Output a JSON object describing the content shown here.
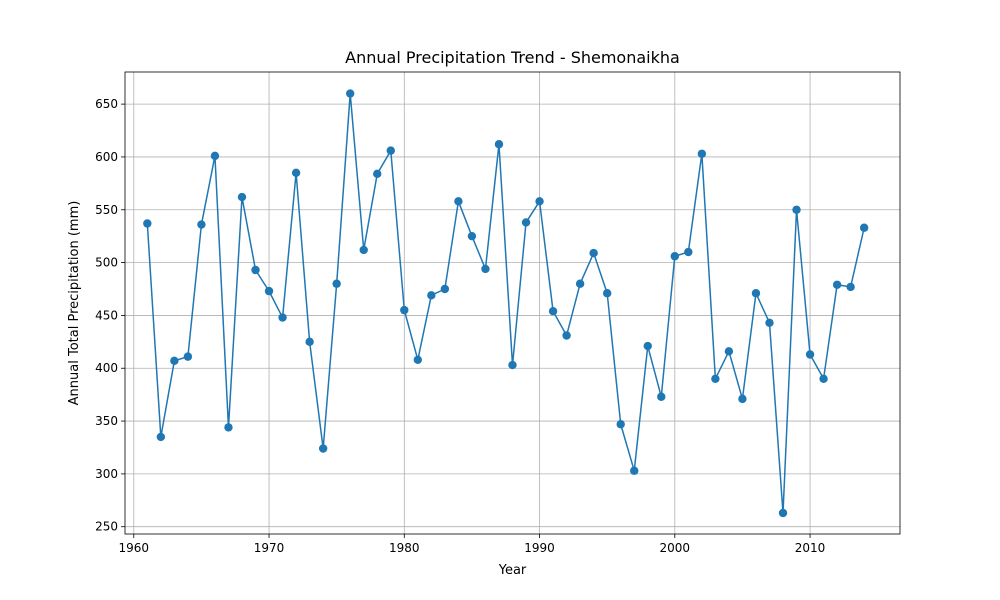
{
  "chart_data": {
    "type": "line",
    "title": "Annual Precipitation Trend - Shemonaikha",
    "xlabel": "Year",
    "ylabel": "Annual Total Precipitation (mm)",
    "xlim": [
      1959.35,
      2016.65
    ],
    "ylim": [
      243.1,
      680.4
    ],
    "xticks": [
      1960,
      1970,
      1980,
      1990,
      2000,
      2010
    ],
    "yticks": [
      250,
      300,
      350,
      400,
      450,
      500,
      550,
      600,
      650
    ],
    "grid": true,
    "line_color": "#1f77b4",
    "marker": "circle",
    "series": [
      {
        "x": [
          1961,
          1962,
          1963,
          1964,
          1965,
          1966,
          1967,
          1968,
          1969,
          1970,
          1971,
          1972,
          1973,
          1974,
          1975,
          1976,
          1977,
          1978,
          1979,
          1980,
          1981,
          1982,
          1983,
          1984,
          1985,
          1986,
          1987,
          1988,
          1989,
          1990,
          1991,
          1992,
          1993,
          1994,
          1995,
          1996,
          1997,
          1998,
          1999,
          2000,
          2001,
          2002,
          2003,
          2004,
          2005,
          2006,
          2007,
          2008,
          2009,
          2010,
          2011,
          2012,
          2013,
          2014
        ],
        "y": [
          537,
          335,
          407,
          411,
          536,
          601,
          344,
          562,
          493,
          473,
          448,
          585,
          425,
          324,
          480,
          660,
          512,
          584,
          606,
          455,
          408,
          469,
          475,
          558,
          525,
          494,
          612,
          403,
          538,
          558,
          454,
          431,
          480,
          509,
          471,
          347,
          303,
          421,
          373,
          506,
          510,
          603,
          390,
          416,
          371,
          471,
          443,
          263,
          550,
          413,
          390,
          479,
          477,
          533
        ]
      }
    ]
  }
}
